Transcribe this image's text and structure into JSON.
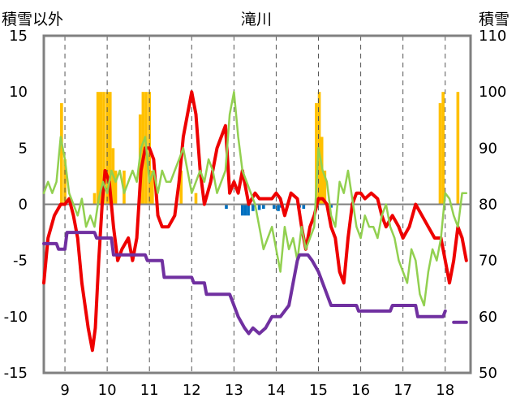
{
  "chart_data": {
    "type": "line",
    "title": "滝川",
    "ylabel_left": "積雪以外",
    "ylabel_right": "積雪",
    "xlim": [
      8.5,
      18.6
    ],
    "ylim_left": [
      -15,
      15
    ],
    "ylim_right": [
      50,
      110
    ],
    "x_ticks": [
      9,
      10,
      11,
      12,
      13,
      14,
      15,
      16,
      17,
      18
    ],
    "y_ticks_left": [
      -15,
      -10,
      -5,
      0,
      5,
      10,
      15
    ],
    "y_ticks_right": [
      50,
      60,
      70,
      80,
      90,
      100,
      110
    ],
    "grid": "vertical dashed",
    "colors": {
      "red": "#ee0000",
      "green": "#92d050",
      "purple": "#7030a0",
      "orange_bar": "#ffc000",
      "blue_bar": "#0070c0",
      "axis": "#808080"
    },
    "series": [
      {
        "axis": "left",
        "color": "red",
        "x": [
          8.5,
          8.6,
          8.75,
          8.9,
          9.0,
          9.1,
          9.2,
          9.3,
          9.4,
          9.55,
          9.65,
          9.72,
          9.8,
          9.88,
          9.95,
          10.05,
          10.15,
          10.25,
          10.35,
          10.5,
          10.6,
          10.7,
          10.8,
          10.9,
          11.0,
          11.1,
          11.2,
          11.3,
          11.45,
          11.6,
          11.7,
          11.8,
          11.9,
          12.0,
          12.1,
          12.2,
          12.3,
          12.45,
          12.6,
          12.7,
          12.8,
          12.9,
          13.0,
          13.1,
          13.2,
          13.35,
          13.5,
          13.6,
          13.75,
          13.9,
          14.0,
          14.1,
          14.2,
          14.35,
          14.5,
          14.6,
          14.7,
          14.8,
          14.9,
          15.0,
          15.1,
          15.2,
          15.3,
          15.4,
          15.5,
          15.6,
          15.7,
          15.8,
          15.9,
          16.0,
          16.1,
          16.25,
          16.4,
          16.5,
          16.6,
          16.75,
          16.9,
          17.0,
          17.15,
          17.3,
          17.45,
          17.6,
          17.75,
          17.9,
          18.0,
          18.1,
          18.2,
          18.3,
          18.4,
          18.5
        ],
        "y": [
          -7,
          -3,
          -1,
          0,
          0,
          0.5,
          -1,
          -3,
          -7,
          -11,
          -13,
          -11,
          -5,
          0,
          3,
          2,
          -2,
          -5,
          -4,
          -3,
          -5,
          -3,
          3,
          5,
          5,
          4,
          -1,
          -2,
          -2,
          -1,
          2,
          6,
          8,
          10,
          8,
          3,
          0,
          2,
          5,
          6,
          7,
          1,
          2,
          1,
          3,
          0,
          1,
          0.5,
          0.5,
          0.5,
          1,
          0.5,
          -1,
          1,
          0.5,
          -2,
          -4,
          -2,
          -1,
          0.5,
          0.5,
          0,
          -2,
          -3,
          -6,
          -7,
          -3,
          0,
          1,
          1,
          0.5,
          1,
          0.5,
          -1,
          -2,
          -1,
          -2,
          -3,
          -2,
          0,
          -1,
          -2,
          -3,
          -3,
          -5,
          -7,
          -5,
          -2,
          -3,
          -5
        ]
      },
      {
        "axis": "left",
        "color": "green",
        "x": [
          8.5,
          8.6,
          8.7,
          8.8,
          8.9,
          9.0,
          9.1,
          9.2,
          9.3,
          9.4,
          9.5,
          9.6,
          9.7,
          9.8,
          9.9,
          10.0,
          10.1,
          10.2,
          10.3,
          10.4,
          10.5,
          10.6,
          10.7,
          10.8,
          10.9,
          11.0,
          11.1,
          11.2,
          11.3,
          11.4,
          11.5,
          11.6,
          11.7,
          11.8,
          11.9,
          12.0,
          12.1,
          12.2,
          12.3,
          12.4,
          12.5,
          12.6,
          12.7,
          12.8,
          12.9,
          13.0,
          13.1,
          13.2,
          13.3,
          13.4,
          13.5,
          13.6,
          13.7,
          13.8,
          13.9,
          14.0,
          14.1,
          14.2,
          14.3,
          14.4,
          14.5,
          14.6,
          14.7,
          14.8,
          14.9,
          15.0,
          15.1,
          15.2,
          15.3,
          15.4,
          15.5,
          15.6,
          15.7,
          15.8,
          15.9,
          16.0,
          16.1,
          16.2,
          16.3,
          16.4,
          16.5,
          16.6,
          16.7,
          16.8,
          16.9,
          17.0,
          17.1,
          17.2,
          17.3,
          17.4,
          17.5,
          17.6,
          17.7,
          17.8,
          17.9,
          18.0,
          18.1,
          18.2,
          18.3,
          18.4,
          18.5
        ],
        "y": [
          1,
          2,
          1,
          2,
          6,
          4,
          1,
          0,
          -1,
          0.5,
          -2,
          -1,
          -2,
          0.5,
          2,
          1,
          3,
          2,
          3,
          1,
          2,
          3,
          2,
          5,
          6,
          2,
          3,
          1,
          3,
          2,
          2,
          3,
          4,
          5,
          3,
          1,
          2,
          3,
          2,
          4,
          3,
          1,
          2,
          3,
          8,
          10,
          6,
          3,
          2,
          1,
          0,
          -2,
          -4,
          -3,
          -2,
          -4,
          -6,
          -2,
          -4,
          -3,
          -5,
          -2,
          -4,
          -3,
          -2,
          5,
          3,
          2,
          -1,
          -2,
          2,
          1,
          3,
          0.5,
          -2,
          -3,
          -1,
          -2,
          -2,
          -3,
          -1,
          0,
          -2,
          -3,
          -5,
          -6,
          -7,
          -4,
          -5,
          -8,
          -9,
          -6,
          -4,
          -5,
          -3,
          1,
          0.5,
          -1,
          -2,
          1,
          1
        ]
      },
      {
        "axis": "right",
        "color": "purple",
        "x": [
          8.5,
          8.8,
          8.85,
          9.0,
          9.05,
          9.7,
          9.75,
          10.1,
          10.15,
          10.9,
          10.95,
          11.3,
          11.35,
          12.0,
          12.05,
          12.3,
          12.35,
          12.9,
          12.95,
          13.1,
          13.25,
          13.35,
          13.45,
          13.6,
          13.75,
          13.9,
          14.1,
          14.3,
          14.4,
          14.5,
          14.55,
          14.75,
          14.85,
          15.0,
          15.1,
          15.2,
          15.3,
          15.9,
          15.95,
          16.7,
          16.75,
          17.3,
          17.35,
          17.95,
          18.0
        ],
        "y": [
          73,
          73,
          72,
          72,
          75,
          75,
          74,
          74,
          71,
          71,
          70,
          70,
          67,
          67,
          66,
          66,
          64,
          64,
          63,
          60,
          58,
          57,
          58,
          57,
          58,
          60,
          60,
          62,
          66,
          70,
          71,
          71,
          70,
          68,
          66,
          64,
          62,
          62,
          61,
          61,
          62,
          62,
          60,
          60,
          61
        ]
      },
      {
        "axis": "right",
        "color": "purple",
        "x": [
          18.2,
          18.5
        ],
        "y": [
          59,
          59
        ]
      }
    ],
    "bars_orange": [
      {
        "x": 8.92,
        "v": 9
      },
      {
        "x": 9.0,
        "v": 4
      },
      {
        "x": 9.7,
        "v": 1
      },
      {
        "x": 9.78,
        "v": 10
      },
      {
        "x": 9.85,
        "v": 10
      },
      {
        "x": 9.92,
        "v": 10
      },
      {
        "x": 10.0,
        "v": 10
      },
      {
        "x": 10.07,
        "v": 10
      },
      {
        "x": 10.14,
        "v": 5
      },
      {
        "x": 10.2,
        "v": 3
      },
      {
        "x": 10.4,
        "v": 3
      },
      {
        "x": 10.78,
        "v": 8
      },
      {
        "x": 10.85,
        "v": 10
      },
      {
        "x": 10.92,
        "v": 10
      },
      {
        "x": 11.0,
        "v": 10
      },
      {
        "x": 11.07,
        "v": 3
      },
      {
        "x": 11.75,
        "v": 3
      },
      {
        "x": 12.1,
        "v": 1
      },
      {
        "x": 14.95,
        "v": 9
      },
      {
        "x": 15.02,
        "v": 10
      },
      {
        "x": 15.08,
        "v": 6
      },
      {
        "x": 15.15,
        "v": 3
      },
      {
        "x": 17.88,
        "v": 9
      },
      {
        "x": 17.95,
        "v": 10
      },
      {
        "x": 18.3,
        "v": 10
      }
    ],
    "bars_blue": [
      {
        "x": 12.82,
        "v": -0.4
      },
      {
        "x": 13.2,
        "v": -1
      },
      {
        "x": 13.27,
        "v": -1
      },
      {
        "x": 13.34,
        "v": -1
      },
      {
        "x": 13.45,
        "v": -0.6
      },
      {
        "x": 13.6,
        "v": -0.5
      },
      {
        "x": 13.7,
        "v": -0.4
      },
      {
        "x": 13.95,
        "v": -0.4
      },
      {
        "x": 14.05,
        "v": -0.6
      },
      {
        "x": 14.12,
        "v": -0.3
      },
      {
        "x": 14.55,
        "v": -0.3
      },
      {
        "x": 14.65,
        "v": -0.4
      },
      {
        "x": 15.3,
        "v": -0.3
      }
    ]
  }
}
